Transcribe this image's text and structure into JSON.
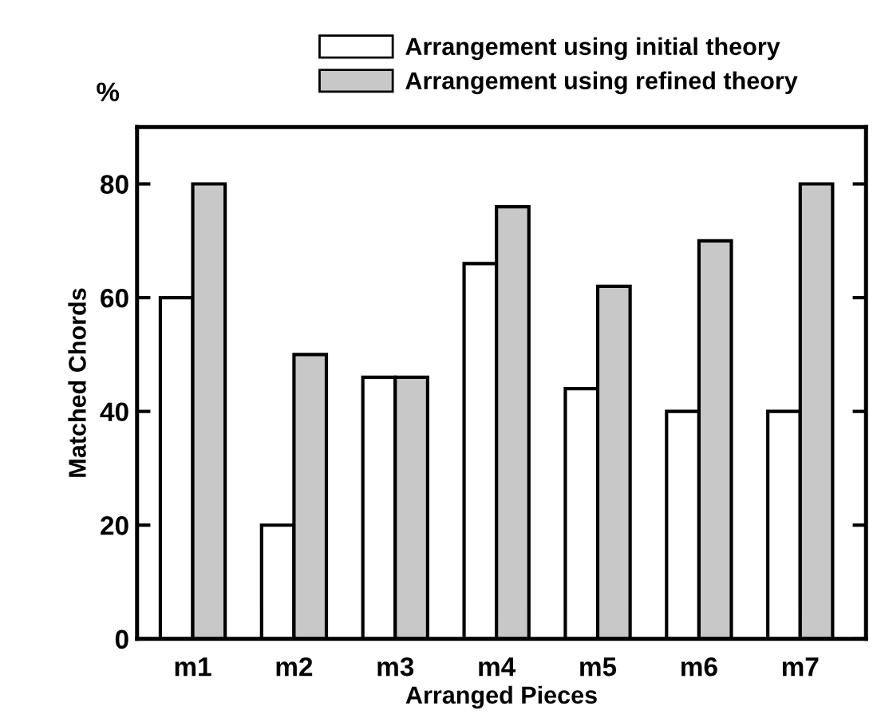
{
  "chart_data": {
    "type": "bar",
    "xlabel": "Arranged Pieces",
    "ylabel": "Matched Chords",
    "annotations": [
      "%"
    ],
    "categories": [
      "m1",
      "m2",
      "m3",
      "m4",
      "m5",
      "m6",
      "m7"
    ],
    "series": [
      {
        "name": "Arrangement using initial theory",
        "color": "#ffffff",
        "values": [
          60,
          20,
          46,
          66,
          44,
          40,
          40
        ]
      },
      {
        "name": "Arrangement using refined theory",
        "color": "#c8c8c8",
        "values": [
          80,
          50,
          46,
          76,
          62,
          70,
          80
        ]
      }
    ],
    "ylim": [
      0,
      90
    ],
    "yticks": [
      0,
      20,
      40,
      60,
      80
    ],
    "grid": false,
    "legend": "top"
  }
}
